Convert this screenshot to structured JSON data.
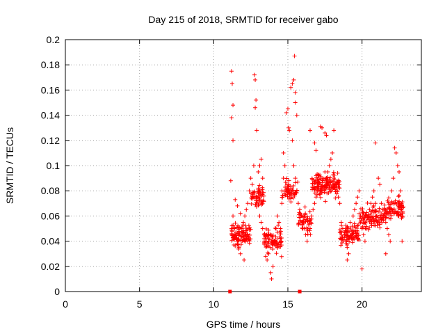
{
  "chart_data": {
    "type": "scatter",
    "title": "Day 215 of 2018, SRMTID for receiver gabo",
    "xlabel": "GPS time / hours",
    "ylabel": "SRMTID / TECUs",
    "xlim": [
      0,
      24
    ],
    "ylim": [
      0,
      0.2
    ],
    "xticks": [
      0,
      5,
      10,
      15,
      20
    ],
    "xtick_labels": [
      "0",
      "5",
      "10",
      "15",
      "20"
    ],
    "yticks": [
      0,
      0.02,
      0.04,
      0.06,
      0.08,
      0.1,
      0.12,
      0.14,
      0.16,
      0.18,
      0.2
    ],
    "ytick_labels": [
      "0",
      "0.02",
      "0.04",
      "0.06",
      "0.08",
      "0.1",
      "0.12",
      "0.14",
      "0.16",
      "0.18",
      "0.2"
    ],
    "grid": true,
    "marker": "+",
    "color": "#ff0000",
    "data_window_hours": [
      11.0,
      22.8
    ],
    "zero_markers": [
      11.1,
      15.8
    ],
    "series": [
      {
        "name": "SRMTID",
        "points": [
          [
            11.2,
            0.175
          ],
          [
            11.25,
            0.165
          ],
          [
            11.3,
            0.148
          ],
          [
            11.2,
            0.138
          ],
          [
            11.3,
            0.12
          ],
          [
            11.15,
            0.088
          ],
          [
            11.3,
            0.06
          ],
          [
            11.4,
            0.05
          ],
          [
            11.5,
            0.045
          ],
          [
            11.6,
            0.04
          ],
          [
            11.7,
            0.035
          ],
          [
            11.8,
            0.03
          ],
          [
            11.9,
            0.05
          ],
          [
            12.0,
            0.055
          ],
          [
            12.1,
            0.06
          ],
          [
            11.45,
            0.073
          ],
          [
            11.6,
            0.068
          ],
          [
            11.8,
            0.062
          ],
          [
            12.05,
            0.025
          ],
          [
            12.2,
            0.065
          ],
          [
            12.3,
            0.07
          ],
          [
            12.4,
            0.08
          ],
          [
            12.5,
            0.09
          ],
          [
            12.6,
            0.085
          ],
          [
            12.7,
            0.075
          ],
          [
            12.75,
            0.172
          ],
          [
            12.8,
            0.168
          ],
          [
            12.85,
            0.152
          ],
          [
            12.8,
            0.146
          ],
          [
            12.9,
            0.128
          ],
          [
            12.7,
            0.1
          ],
          [
            13.0,
            0.095
          ],
          [
            13.1,
            0.1
          ],
          [
            13.2,
            0.105
          ],
          [
            13.3,
            0.09
          ],
          [
            13.1,
            0.06
          ],
          [
            13.2,
            0.055
          ],
          [
            13.3,
            0.05
          ],
          [
            13.4,
            0.045
          ],
          [
            13.5,
            0.04
          ],
          [
            13.5,
            0.028
          ],
          [
            13.6,
            0.025
          ],
          [
            13.7,
            0.03
          ],
          [
            13.8,
            0.035
          ],
          [
            13.85,
            0.015
          ],
          [
            13.9,
            0.01
          ],
          [
            14.0,
            0.02
          ],
          [
            14.1,
            0.04
          ],
          [
            14.2,
            0.05
          ],
          [
            14.3,
            0.06
          ],
          [
            14.4,
            0.055
          ],
          [
            14.5,
            0.05
          ],
          [
            14.6,
            0.07
          ],
          [
            14.6,
            0.08
          ],
          [
            14.7,
            0.09
          ],
          [
            14.8,
            0.1
          ],
          [
            14.7,
            0.11
          ],
          [
            14.9,
            0.142
          ],
          [
            15.0,
            0.145
          ],
          [
            15.05,
            0.13
          ],
          [
            15.1,
            0.128
          ],
          [
            15.2,
            0.162
          ],
          [
            15.3,
            0.165
          ],
          [
            15.4,
            0.168
          ],
          [
            15.5,
            0.158
          ],
          [
            15.45,
            0.187
          ],
          [
            15.5,
            0.15
          ],
          [
            15.6,
            0.14
          ],
          [
            15.3,
            0.12
          ],
          [
            15.4,
            0.1
          ],
          [
            15.5,
            0.09
          ],
          [
            15.6,
            0.08
          ],
          [
            15.7,
            0.07
          ],
          [
            15.8,
            0.065
          ],
          [
            15.9,
            0.06
          ],
          [
            16.0,
            0.055
          ],
          [
            16.1,
            0.05
          ],
          [
            16.2,
            0.045
          ],
          [
            16.3,
            0.04
          ],
          [
            16.5,
            0.05
          ],
          [
            16.6,
            0.06
          ],
          [
            16.7,
            0.065
          ],
          [
            16.8,
            0.07
          ],
          [
            16.9,
            0.075
          ],
          [
            17.0,
            0.08
          ],
          [
            16.5,
            0.128
          ],
          [
            16.8,
            0.118
          ],
          [
            16.9,
            0.112
          ],
          [
            17.2,
            0.131
          ],
          [
            17.3,
            0.13
          ],
          [
            17.5,
            0.126
          ],
          [
            17.6,
            0.124
          ],
          [
            17.5,
            0.095
          ],
          [
            17.6,
            0.09
          ],
          [
            17.7,
            0.095
          ],
          [
            17.8,
            0.1
          ],
          [
            17.9,
            0.105
          ],
          [
            18.0,
            0.11
          ],
          [
            18.1,
            0.128
          ],
          [
            18.1,
            0.09
          ],
          [
            18.2,
            0.085
          ],
          [
            18.3,
            0.08
          ],
          [
            18.4,
            0.075
          ],
          [
            18.5,
            0.07
          ],
          [
            18.6,
            0.055
          ],
          [
            18.7,
            0.05
          ],
          [
            18.8,
            0.045
          ],
          [
            18.9,
            0.04
          ],
          [
            19.0,
            0.035
          ],
          [
            19.1,
            0.03
          ],
          [
            19.0,
            0.025
          ],
          [
            19.2,
            0.055
          ],
          [
            19.4,
            0.06
          ],
          [
            19.5,
            0.065
          ],
          [
            19.6,
            0.07
          ],
          [
            19.7,
            0.075
          ],
          [
            19.8,
            0.08
          ],
          [
            19.9,
            0.06
          ],
          [
            20.0,
            0.05
          ],
          [
            20.1,
            0.045
          ],
          [
            20.0,
            0.018
          ],
          [
            20.2,
            0.04
          ],
          [
            20.3,
            0.05
          ],
          [
            20.4,
            0.06
          ],
          [
            20.5,
            0.065
          ],
          [
            20.6,
            0.07
          ],
          [
            20.7,
            0.075
          ],
          [
            20.8,
            0.08
          ],
          [
            20.9,
            0.07
          ],
          [
            21.0,
            0.06
          ],
          [
            20.9,
            0.118
          ],
          [
            21.1,
            0.09
          ],
          [
            21.2,
            0.085
          ],
          [
            21.3,
            0.07
          ],
          [
            21.4,
            0.065
          ],
          [
            21.5,
            0.06
          ],
          [
            21.6,
            0.055
          ],
          [
            21.7,
            0.05
          ],
          [
            21.8,
            0.045
          ],
          [
            21.9,
            0.04
          ],
          [
            21.6,
            0.03
          ],
          [
            22.0,
            0.08
          ],
          [
            22.1,
            0.09
          ],
          [
            22.2,
            0.114
          ],
          [
            22.3,
            0.11
          ],
          [
            22.4,
            0.1
          ],
          [
            22.5,
            0.095
          ],
          [
            22.6,
            0.08
          ],
          [
            22.7,
            0.06
          ],
          [
            22.7,
            0.04
          ]
        ]
      }
    ]
  }
}
